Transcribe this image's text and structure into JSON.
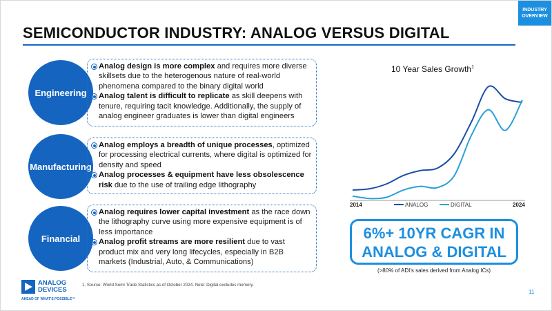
{
  "header": {
    "title": "SEMICONDUCTOR INDUSTRY: ANALOG VERSUS DIGITAL",
    "corner_tag": [
      "INDUSTRY",
      "OVERVIEW"
    ]
  },
  "sections": [
    {
      "label": "Engineering",
      "bullets": [
        {
          "bold": "Analog design is more complex",
          "rest": " and requires more diverse skillsets due to the heterogenous nature of real-world phenomena compared to the binary digital world"
        },
        {
          "bold": "Analog talent is difficult to replicate",
          "rest": " as skill deepens with tenure, requiring tacit knowledge. Additionally, the supply of analog engineer graduates is lower than digital engineers"
        }
      ]
    },
    {
      "label": "Manufacturing",
      "bullets": [
        {
          "bold": "Analog employs a breadth of unique processes",
          "rest": ", optimized for processing electrical currents, where digital is optimized for density and speed"
        },
        {
          "bold": "Analog processes & equipment have less obsolescence risk",
          "rest": " due to the use of trailing edge lithography"
        }
      ]
    },
    {
      "label": "Financial",
      "bullets": [
        {
          "bold": "Analog requires lower capital investment",
          "rest": " as the race down the lithography curve using more expensive equipment is of less importance"
        },
        {
          "bold": "Analog profit streams are more resilient",
          "rest": " due to vast product mix and very long lifecycles, especially in B2B markets (Industrial, Auto, & Communications)"
        }
      ]
    }
  ],
  "chart_data": {
    "type": "line",
    "title": "10 Year Sales Growth",
    "title_footnote": "1",
    "x": [
      2014,
      2015,
      2016,
      2017,
      2018,
      2019,
      2020,
      2021,
      2022,
      2023,
      2024
    ],
    "xtick_labels": [
      "2014",
      "2024"
    ],
    "ylim": [
      0,
      100
    ],
    "series": [
      {
        "name": "ANALOG",
        "color": "#1a4fa8",
        "values": [
          8,
          9,
          13,
          20,
          24,
          26,
          38,
          64,
          93,
          83,
          80
        ]
      },
      {
        "name": "DIGITAL",
        "color": "#2aa0d8",
        "values": [
          3,
          1,
          2,
          8,
          11,
          10,
          20,
          53,
          74,
          57,
          82
        ]
      }
    ],
    "legend": "bottom"
  },
  "cagr": {
    "line1": "6%+ 10YR CAGR IN",
    "line2": "ANALOG & DIGITAL",
    "note": "(>80% of ADI's sales derived from Analog ICs)"
  },
  "footer": {
    "logo_line1": "ANALOG",
    "logo_line2": "DEVICES",
    "tagline": "AHEAD OF WHAT'S POSSIBLE™",
    "footnote": "1. Source: World Semi Trade Statistics as of October 2024. Note: Digital excludes memory.",
    "page_number": "11"
  },
  "colors": {
    "primary": "#1565c0",
    "accent": "#1c8fe0"
  }
}
